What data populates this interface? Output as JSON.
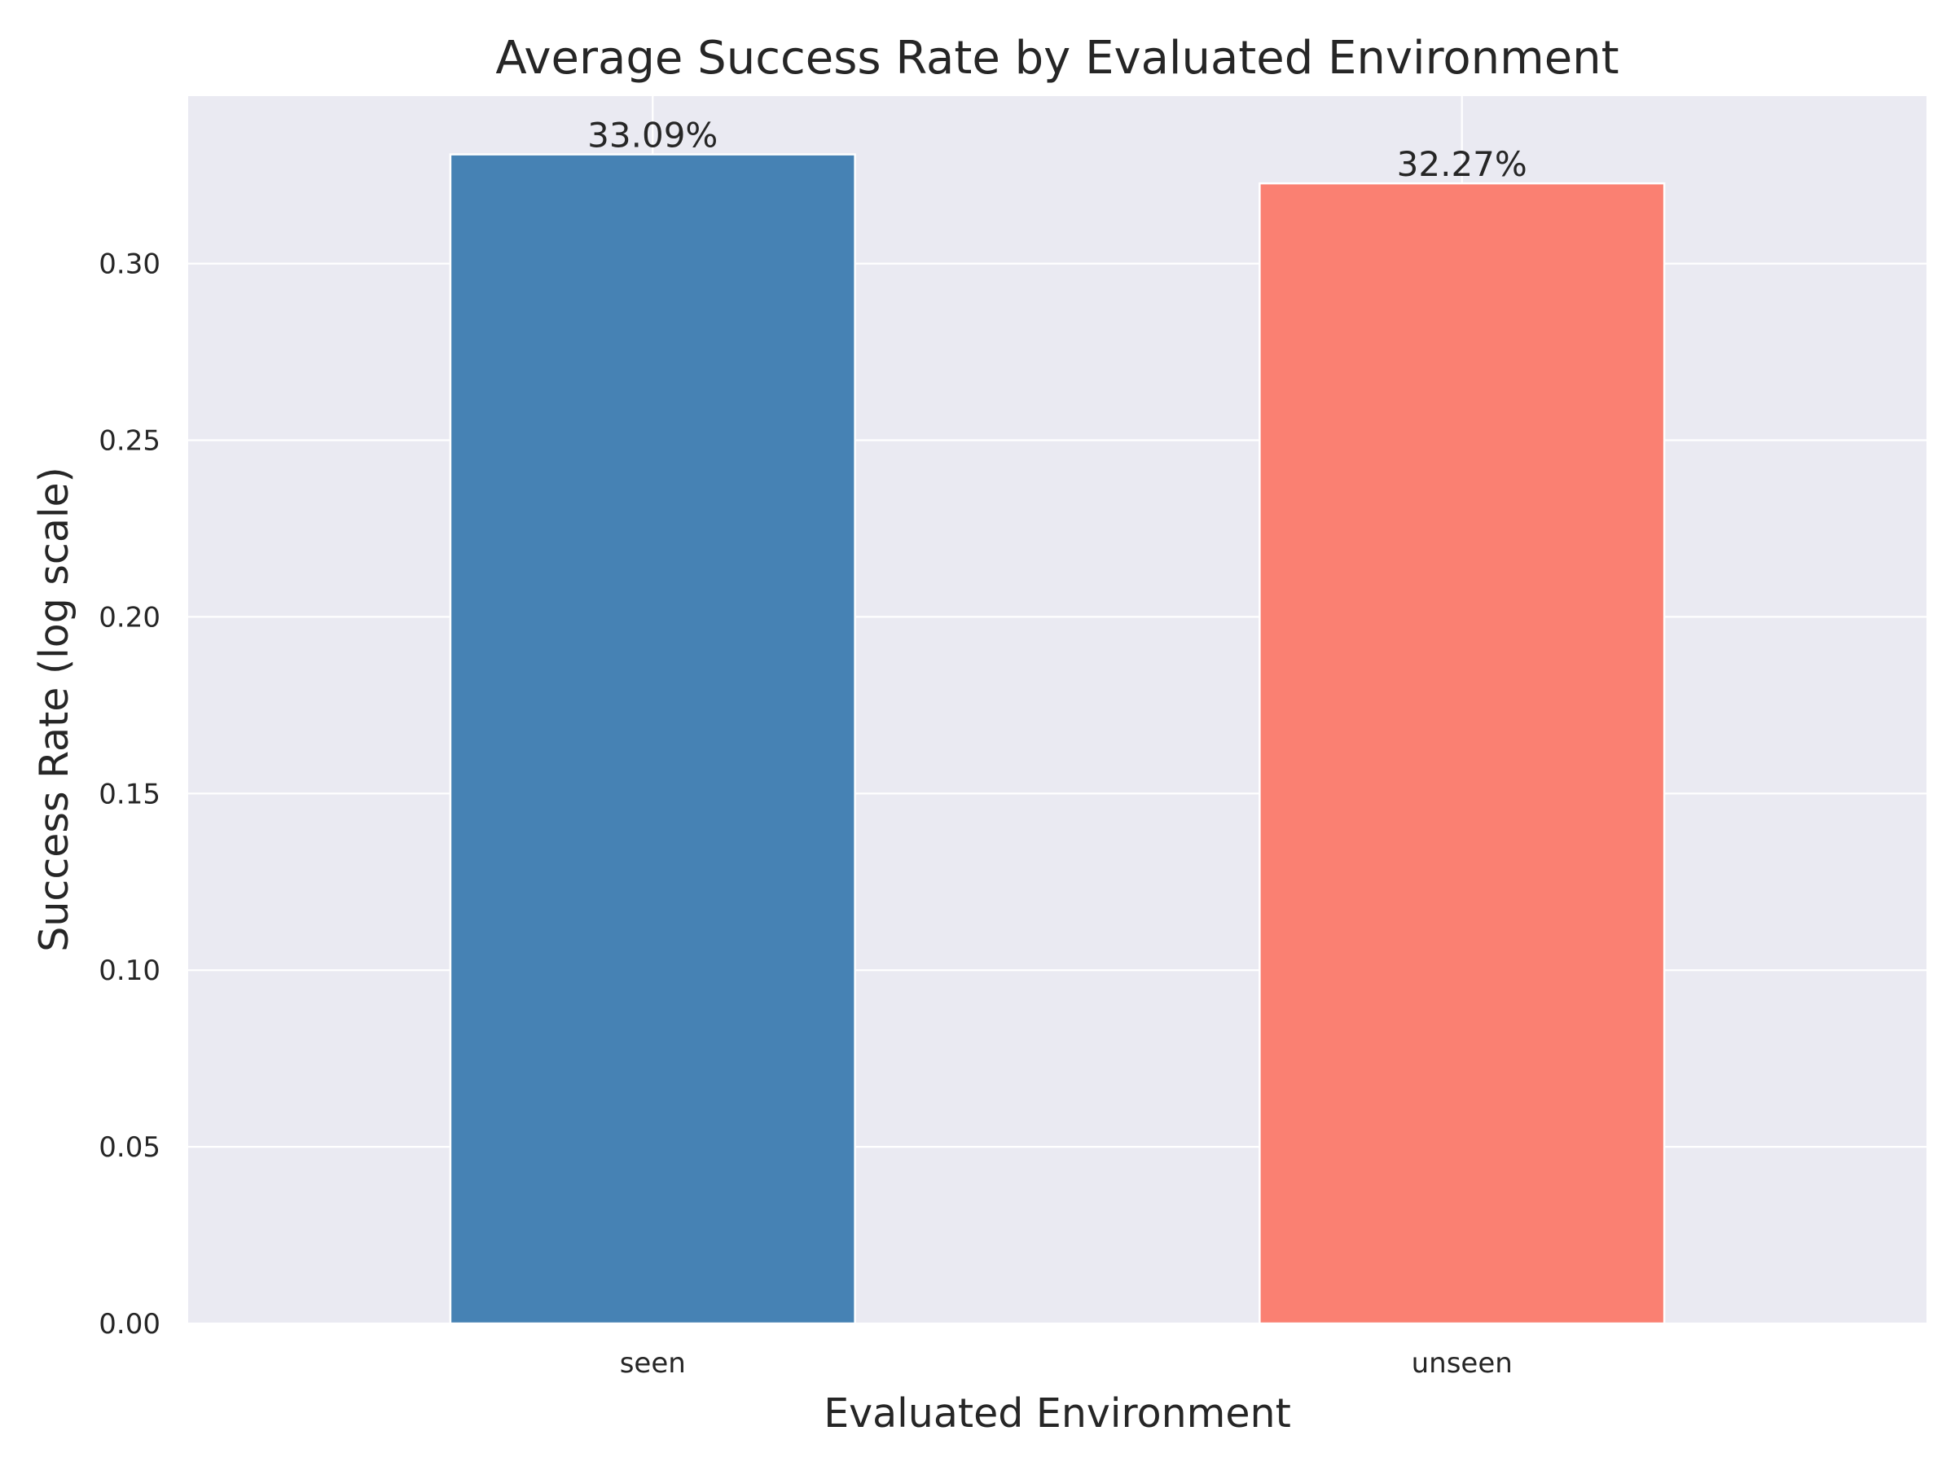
{
  "chart_data": {
    "type": "bar",
    "title": "Average Success Rate by Evaluated Environment",
    "xlabel": "Evaluated Environment",
    "ylabel": "Success Rate (log scale)",
    "categories": [
      "seen",
      "unseen"
    ],
    "values": [
      0.3309,
      0.3227
    ],
    "value_labels": [
      "33.09%",
      "32.27%"
    ],
    "ylim": [
      0,
      0.3474
    ],
    "yticks": [
      0.0,
      0.05,
      0.1,
      0.15,
      0.2,
      0.25,
      0.3
    ],
    "ytick_labels": [
      "0.00",
      "0.05",
      "0.10",
      "0.15",
      "0.20",
      "0.25",
      "0.30"
    ],
    "grid": true,
    "colors": [
      "#4682b4",
      "#fa8072"
    ],
    "background": "#eaeaf2"
  }
}
